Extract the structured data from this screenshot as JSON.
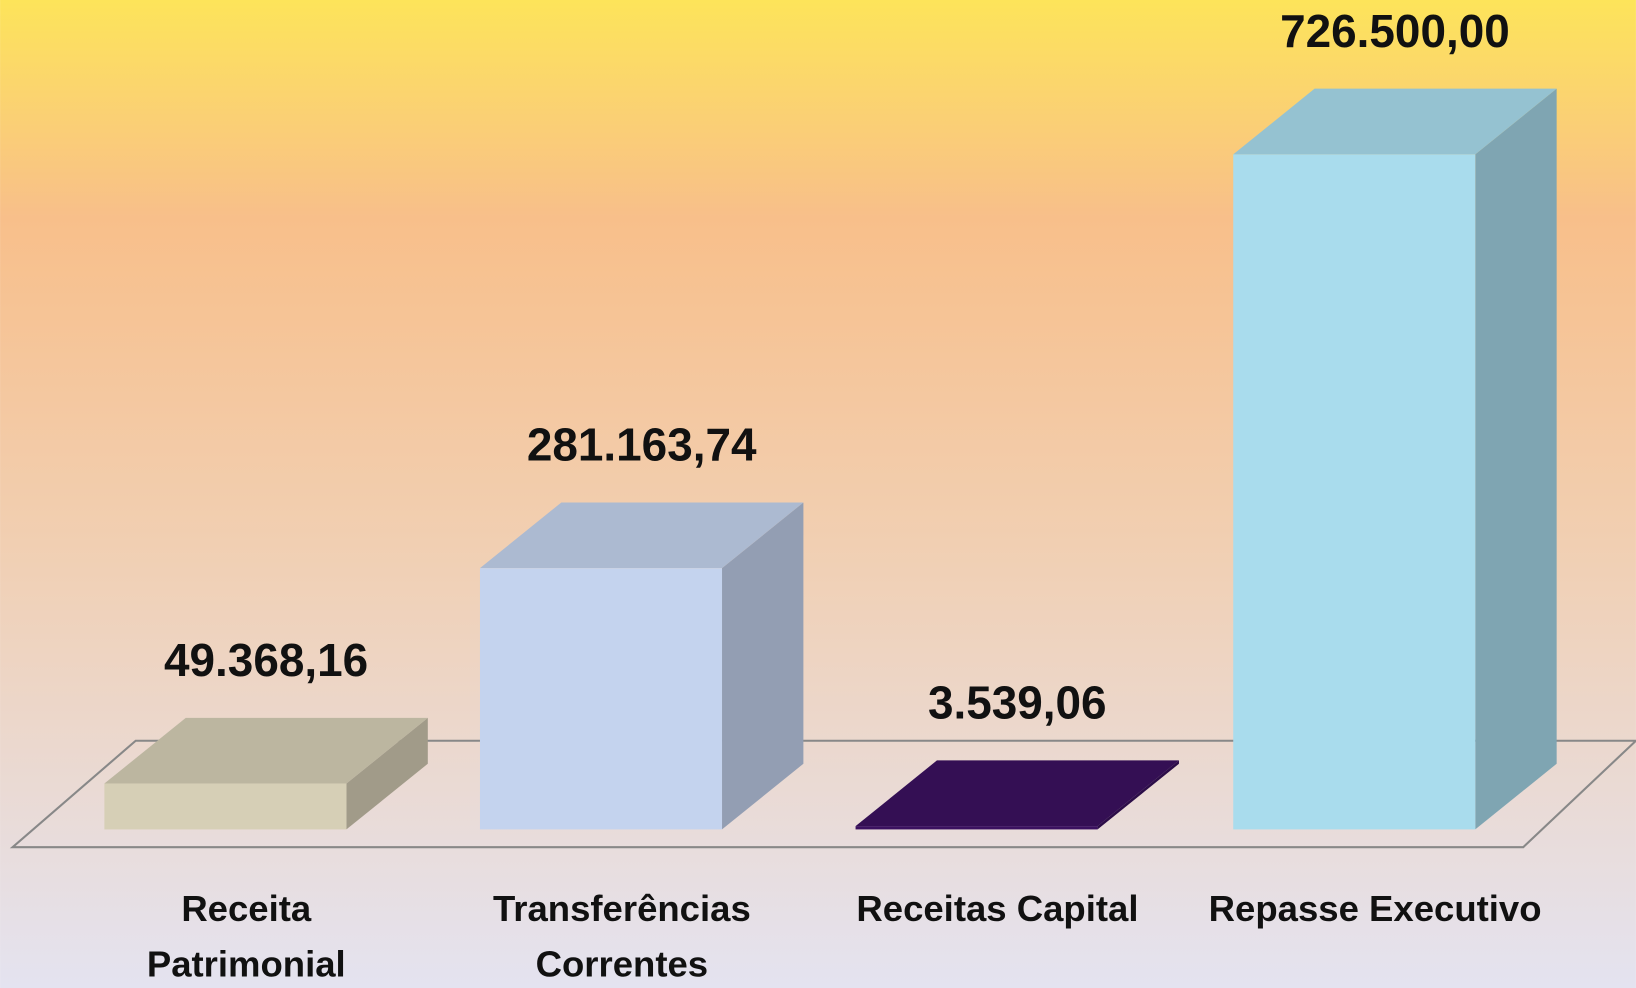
{
  "chart_data": {
    "type": "bar3d",
    "categories": [
      "Receita Patrimonial",
      "Transferências Correntes",
      "Receitas Capital",
      "Repasse Executivo"
    ],
    "values": [
      49368.16,
      281163.74,
      3539.06,
      726500.0
    ],
    "value_labels": [
      "49.368,16",
      "281.163,74",
      "3.539,06",
      "726.500,00"
    ],
    "colors": [
      "#d6cfb6",
      "#c4d3ee",
      "#3b1160",
      "#a9dced"
    ]
  }
}
